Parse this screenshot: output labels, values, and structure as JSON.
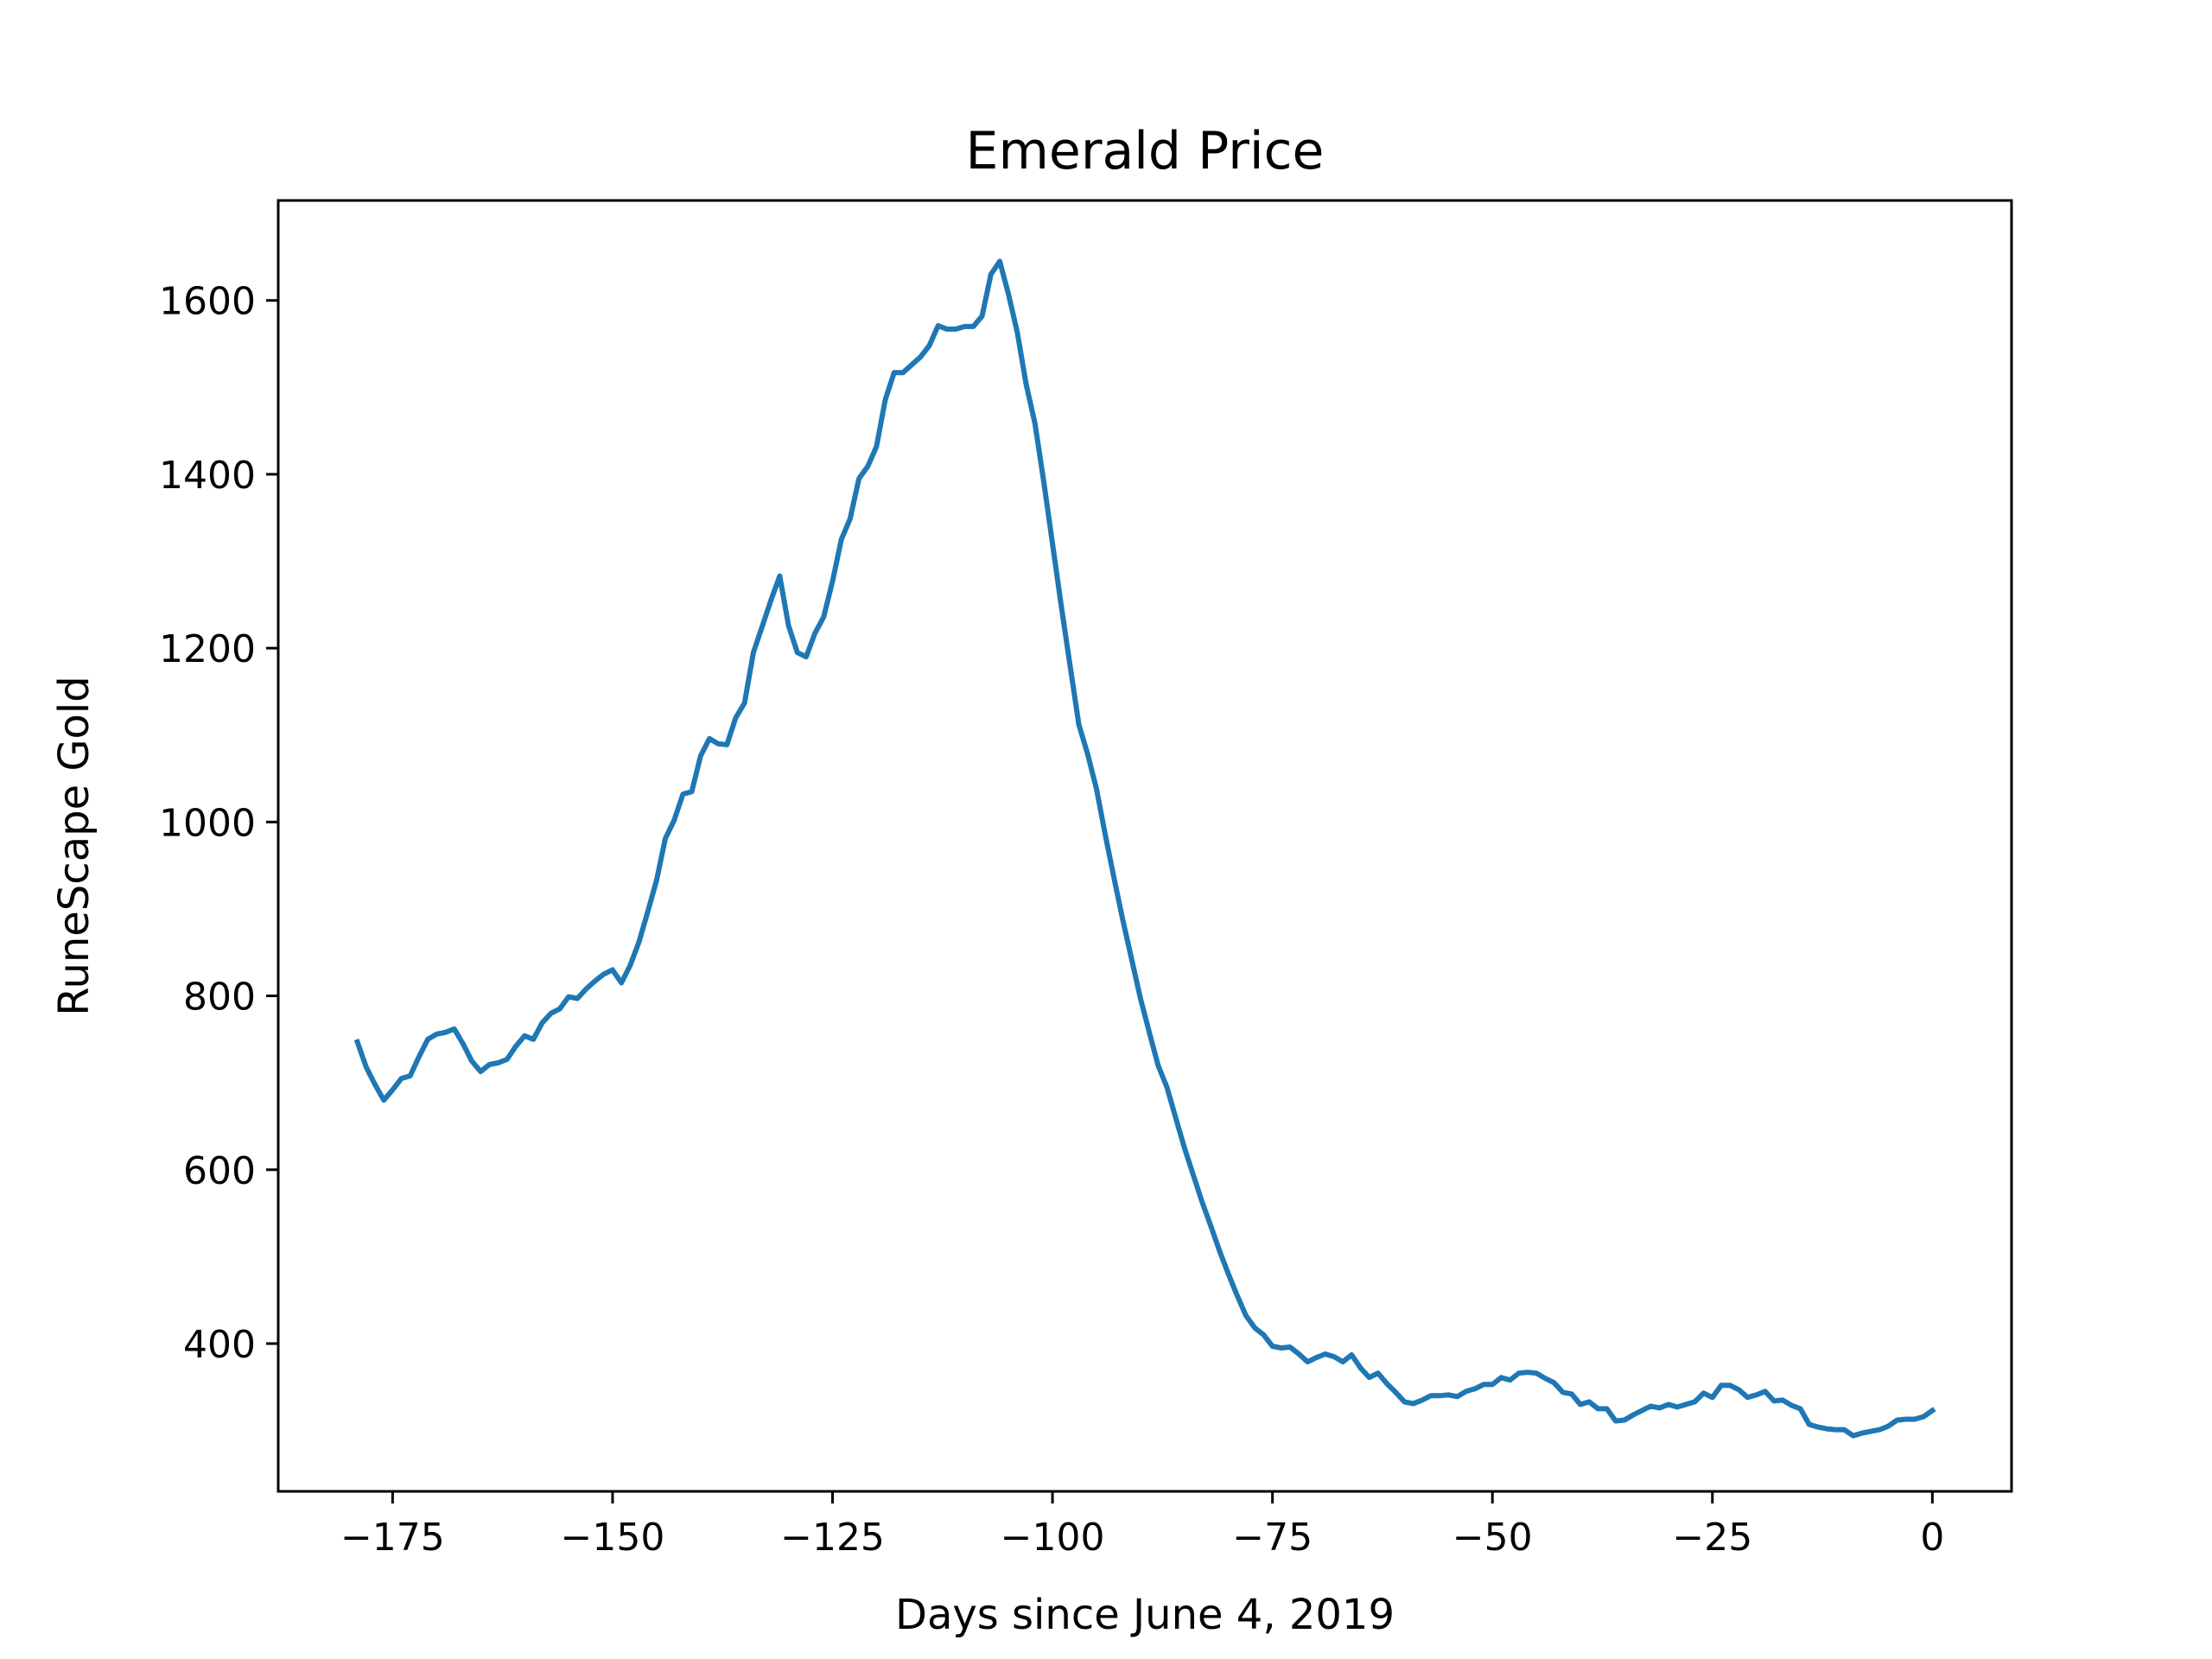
{
  "chart_data": {
    "type": "line",
    "title": "Emerald Price",
    "xlabel": "Days since June 4, 2019",
    "ylabel": "RuneScape Gold",
    "xlim": [
      -188,
      9
    ],
    "ylim": [
      230,
      1715
    ],
    "xticks": [
      -175,
      -150,
      -125,
      -100,
      -75,
      -50,
      -25,
      0
    ],
    "xtick_labels": [
      "−175",
      "−150",
      "−125",
      "−100",
      "−75",
      "−50",
      "−25",
      "0"
    ],
    "yticks": [
      400,
      600,
      800,
      1000,
      1200,
      1400,
      1600
    ],
    "ytick_labels": [
      "400",
      "600",
      "800",
      "1000",
      "1200",
      "1400",
      "1600"
    ],
    "grid": false,
    "line_color": "#1f77b4",
    "series": [
      {
        "x": [
          -179,
          -178,
          -177,
          -176,
          -175,
          -174,
          -173,
          -172,
          -171,
          -170,
          -169,
          -168,
          -167,
          -166,
          -165,
          -164,
          -163,
          -162,
          -161,
          -160,
          -159,
          -158,
          -157,
          -156,
          -155,
          -154,
          -153,
          -152,
          -151,
          -150,
          -149,
          -148,
          -147,
          -146,
          -145,
          -144,
          -143,
          -142,
          -141,
          -140,
          -139,
          -138,
          -137,
          -136,
          -135,
          -134,
          -133,
          -132,
          -131,
          -130,
          -129,
          -128,
          -127,
          -126,
          -125,
          -124,
          -123,
          -122,
          -121,
          -120,
          -119,
          -118,
          -117,
          -116,
          -115,
          -114,
          -113,
          -112,
          -111,
          -110,
          -109,
          -108,
          -107,
          -106,
          -105,
          -104,
          -103,
          -102,
          -101,
          -100,
          -99,
          -98,
          -97,
          -96,
          -95,
          -94,
          -93,
          -92,
          -91,
          -90,
          -89,
          -88,
          -87,
          -86,
          -85,
          -84,
          -83,
          -82,
          -81,
          -80,
          -79,
          -78,
          -77,
          -76,
          -75,
          -74,
          -73,
          -72,
          -71,
          -70,
          -69,
          -68,
          -67,
          -66,
          -65,
          -64,
          -63,
          -62,
          -61,
          -60,
          -59,
          -58,
          -57,
          -56,
          -55,
          -54,
          -53,
          -52,
          -51,
          -50,
          -49,
          -48,
          -47,
          -46,
          -45,
          -44,
          -43,
          -42,
          -41,
          -40,
          -39,
          -38,
          -37,
          -36,
          -35,
          -34,
          -33,
          -32,
          -31,
          -30,
          -29,
          -28,
          -27,
          -26,
          -25,
          -24,
          -23,
          -22,
          -21,
          -20,
          -19,
          -18,
          -17,
          -16,
          -15,
          -14,
          -13,
          -12,
          -11,
          -10,
          -9,
          -8,
          -7,
          -6,
          -5,
          -4,
          -3,
          -2,
          -1,
          0
        ],
        "y": [
          747,
          718,
          698,
          680,
          692,
          705,
          708,
          730,
          750,
          756,
          758,
          762,
          745,
          725,
          713,
          721,
          723,
          727,
          742,
          754,
          750,
          769,
          780,
          785,
          799,
          797,
          808,
          817,
          825,
          830,
          815,
          835,
          862,
          897,
          933,
          981,
          1002,
          1032,
          1035,
          1076,
          1096,
          1090,
          1089,
          1120,
          1137,
          1195,
          1225,
          1255,
          1283,
          1226,
          1195,
          1190,
          1217,
          1236,
          1277,
          1325,
          1349,
          1395,
          1409,
          1432,
          1486,
          1517,
          1517,
          1526,
          1535,
          1548,
          1571,
          1567,
          1567,
          1570,
          1570,
          1582,
          1630,
          1645,
          1607,
          1563,
          1504,
          1459,
          1392,
          1320,
          1248,
          1180,
          1112,
          1078,
          1038,
          985,
          935,
          887,
          842,
          797,
          758,
          720,
          695,
          660,
          625,
          594,
          563,
          535,
          506,
          480,
          455,
          432,
          418,
          410,
          397,
          395,
          396,
          388,
          379,
          384,
          388,
          385,
          379,
          387,
          372,
          361,
          366,
          354,
          344,
          333,
          331,
          335,
          340,
          340,
          341,
          339,
          345,
          348,
          353,
          353,
          361,
          358,
          366,
          367,
          366,
          360,
          355,
          344,
          342,
          330,
          333,
          325,
          325,
          311,
          312,
          318,
          323,
          328,
          326,
          330,
          327,
          330,
          333,
          343,
          338,
          352,
          352,
          347,
          338,
          341,
          345,
          334,
          335,
          329,
          325,
          307,
          304,
          302,
          301,
          301,
          294,
          297,
          299,
          301,
          305,
          312,
          313,
          313,
          316,
          323
        ]
      }
    ]
  }
}
